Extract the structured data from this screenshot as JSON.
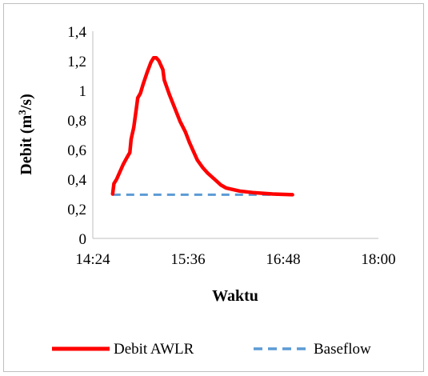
{
  "chart_data": {
    "type": "line",
    "xlabel": "Waktu",
    "ylabel_main": "Debit (m",
    "ylabel_sup": "3",
    "ylabel_tail": "/s)",
    "x_ticks": [
      "14:24",
      "15:36",
      "16:48",
      "18:00"
    ],
    "x_tick_minutes": [
      864,
      936,
      1008,
      1080
    ],
    "xlim_minutes": [
      864,
      1080
    ],
    "y_ticks": [
      "0",
      "0,2",
      "0,4",
      "0,6",
      "0,8",
      "1",
      "1,2",
      "1,4"
    ],
    "ylim": [
      0,
      1.4
    ],
    "y_tick_step": 0.2,
    "grid": false,
    "legend_position": "bottom",
    "series": [
      {
        "name": "Debit AWLR",
        "color": "#ff0000",
        "style": "solid",
        "points": [
          [
            879,
            0.3
          ],
          [
            880,
            0.37
          ],
          [
            882,
            0.4
          ],
          [
            884,
            0.44
          ],
          [
            887,
            0.5
          ],
          [
            890,
            0.55
          ],
          [
            892,
            0.58
          ],
          [
            893,
            0.67
          ],
          [
            895,
            0.75
          ],
          [
            897,
            0.88
          ],
          [
            898,
            0.95
          ],
          [
            900,
            0.98
          ],
          [
            902,
            1.04
          ],
          [
            905,
            1.12
          ],
          [
            908,
            1.19
          ],
          [
            910,
            1.22
          ],
          [
            912,
            1.22
          ],
          [
            914,
            1.2
          ],
          [
            917,
            1.14
          ],
          [
            918,
            1.07
          ],
          [
            922,
            0.97
          ],
          [
            926,
            0.88
          ],
          [
            930,
            0.79
          ],
          [
            934,
            0.72
          ],
          [
            937,
            0.65
          ],
          [
            940,
            0.59
          ],
          [
            943,
            0.53
          ],
          [
            947,
            0.48
          ],
          [
            951,
            0.44
          ],
          [
            956,
            0.4
          ],
          [
            961,
            0.36
          ],
          [
            965,
            0.34
          ],
          [
            975,
            0.32
          ],
          [
            985,
            0.31
          ],
          [
            1000,
            0.3
          ],
          [
            1015,
            0.295
          ]
        ]
      },
      {
        "name": "Baseflow",
        "color": "#5b9bd5",
        "style": "dashed",
        "points": [
          [
            879,
            0.295
          ],
          [
            1015,
            0.295
          ]
        ]
      }
    ]
  }
}
